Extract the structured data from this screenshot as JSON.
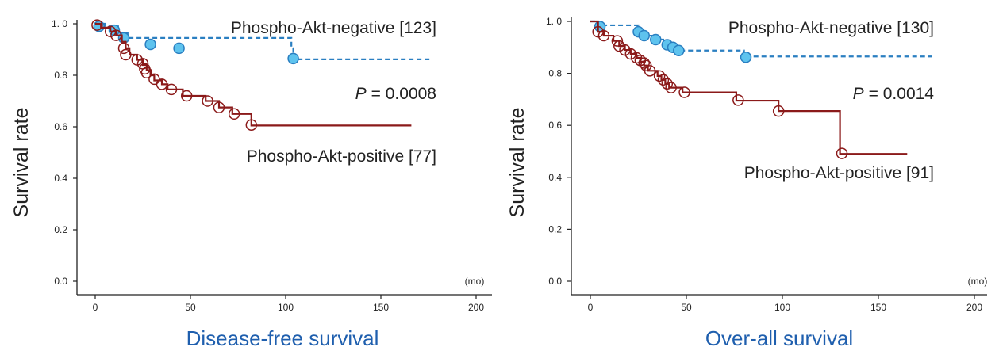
{
  "colors": {
    "negative_line": "#2a7fc1",
    "negative_marker_fill": "#5ec3ee",
    "positive_line": "#8b1a1a",
    "title": "#1f5fae",
    "axis": "#222222"
  },
  "chart_data": [
    {
      "type": "line",
      "title": "Disease-free survival",
      "ylabel": "Survival rate",
      "x_unit_label": "(mo)",
      "xlim": [
        -8,
        210
      ],
      "ylim": [
        0,
        1.0
      ],
      "xticks": [
        "0",
        "50",
        "100",
        "150",
        "200"
      ],
      "yticks": [
        "0.0",
        "0.2",
        "0.4",
        "0.6",
        "0.8",
        "1. 0"
      ],
      "p_value_label": "P",
      "p_value_text": "= 0.0008",
      "grid": false,
      "series": [
        {
          "name": "Phospho-Akt-negative [123]",
          "style": "dashed-step",
          "steps": [
            [
              0,
              1.0
            ],
            [
              5,
              0.99
            ],
            [
              12,
              0.965
            ],
            [
              17,
              0.945
            ],
            [
              103,
              0.905
            ],
            [
              104,
              0.862
            ],
            [
              176,
              0.862
            ]
          ],
          "censored": [
            [
              2,
              0.99
            ],
            [
              10,
              0.975
            ],
            [
              15,
              0.945
            ],
            [
              29,
              0.92
            ],
            [
              44,
              0.905
            ],
            [
              104,
              0.865
            ]
          ]
        },
        {
          "name": "Phospho-Akt-positive [77]",
          "style": "solid-step",
          "steps": [
            [
              0,
              1.0
            ],
            [
              3,
              0.985
            ],
            [
              8,
              0.97
            ],
            [
              11,
              0.955
            ],
            [
              14,
              0.93
            ],
            [
              16,
              0.905
            ],
            [
              18,
              0.88
            ],
            [
              22,
              0.86
            ],
            [
              25,
              0.84
            ],
            [
              27,
              0.82
            ],
            [
              29,
              0.8
            ],
            [
              31,
              0.78
            ],
            [
              35,
              0.765
            ],
            [
              38,
              0.745
            ],
            [
              46,
              0.72
            ],
            [
              58,
              0.7
            ],
            [
              65,
              0.675
            ],
            [
              72,
              0.65
            ],
            [
              82,
              0.605
            ],
            [
              166,
              0.605
            ]
          ],
          "censored": [
            [
              1,
              0.995
            ],
            [
              8,
              0.97
            ],
            [
              11,
              0.955
            ],
            [
              15,
              0.905
            ],
            [
              16,
              0.88
            ],
            [
              22,
              0.86
            ],
            [
              25,
              0.845
            ],
            [
              26,
              0.825
            ],
            [
              27,
              0.81
            ],
            [
              31,
              0.785
            ],
            [
              35,
              0.765
            ],
            [
              40,
              0.745
            ],
            [
              48,
              0.72
            ],
            [
              59,
              0.7
            ],
            [
              65,
              0.675
            ],
            [
              73,
              0.65
            ],
            [
              82,
              0.607
            ]
          ]
        }
      ]
    },
    {
      "type": "line",
      "title": "Over-all survival",
      "ylabel": "Survival rate",
      "x_unit_label": "(mo)",
      "xlim": [
        -8,
        210
      ],
      "ylim": [
        0,
        1.0
      ],
      "xticks": [
        "0",
        "50",
        "100",
        "150",
        "200"
      ],
      "yticks": [
        "0.0",
        "0.2",
        "0.4",
        "0.6",
        "0.8",
        "1. 0"
      ],
      "p_value_label": "P",
      "p_value_text": "= 0.0014",
      "grid": false,
      "series": [
        {
          "name": "Phospho-Akt-negative [130]",
          "style": "dashed-step",
          "steps": [
            [
              0,
              1.0
            ],
            [
              4,
              0.985
            ],
            [
              25,
              0.96
            ],
            [
              28,
              0.945
            ],
            [
              34,
              0.93
            ],
            [
              40,
              0.91
            ],
            [
              44,
              0.9
            ],
            [
              46,
              0.888
            ],
            [
              80,
              0.865
            ],
            [
              178,
              0.865
            ]
          ],
          "censored": [
            [
              5,
              0.98
            ],
            [
              25,
              0.96
            ],
            [
              28,
              0.945
            ],
            [
              34,
              0.93
            ],
            [
              40,
              0.91
            ],
            [
              43,
              0.9
            ],
            [
              46,
              0.888
            ],
            [
              81,
              0.862
            ]
          ]
        },
        {
          "name": "Phospho-Akt-positive [91]",
          "style": "solid-step",
          "steps": [
            [
              0,
              1.0
            ],
            [
              4,
              0.96
            ],
            [
              7,
              0.945
            ],
            [
              12,
              0.925
            ],
            [
              15,
              0.905
            ],
            [
              18,
              0.89
            ],
            [
              21,
              0.875
            ],
            [
              24,
              0.86
            ],
            [
              26,
              0.845
            ],
            [
              28,
              0.83
            ],
            [
              30,
              0.81
            ],
            [
              35,
              0.79
            ],
            [
              37,
              0.775
            ],
            [
              39,
              0.76
            ],
            [
              41,
              0.745
            ],
            [
              48,
              0.727
            ],
            [
              76,
              0.695
            ],
            [
              98,
              0.655
            ],
            [
              130,
              0.49
            ],
            [
              165,
              0.49
            ]
          ],
          "censored": [
            [
              4,
              0.96
            ],
            [
              7,
              0.945
            ],
            [
              14,
              0.925
            ],
            [
              15,
              0.905
            ],
            [
              18,
              0.89
            ],
            [
              21,
              0.875
            ],
            [
              24,
              0.86
            ],
            [
              26,
              0.85
            ],
            [
              28,
              0.84
            ],
            [
              29,
              0.83
            ],
            [
              31,
              0.81
            ],
            [
              36,
              0.79
            ],
            [
              38,
              0.775
            ],
            [
              40,
              0.76
            ],
            [
              42,
              0.745
            ],
            [
              49,
              0.727
            ],
            [
              77,
              0.697
            ],
            [
              98,
              0.655
            ],
            [
              131,
              0.492
            ]
          ]
        }
      ]
    }
  ],
  "panels": [
    {
      "annotations": {
        "negative_label": "Phospho-Akt-negative [123]",
        "positive_label": "Phospho-Akt-positive [77]"
      }
    },
    {
      "annotations": {
        "negative_label": "Phospho-Akt-negative [130]",
        "positive_label": "Phospho-Akt-positive [91]"
      }
    }
  ]
}
